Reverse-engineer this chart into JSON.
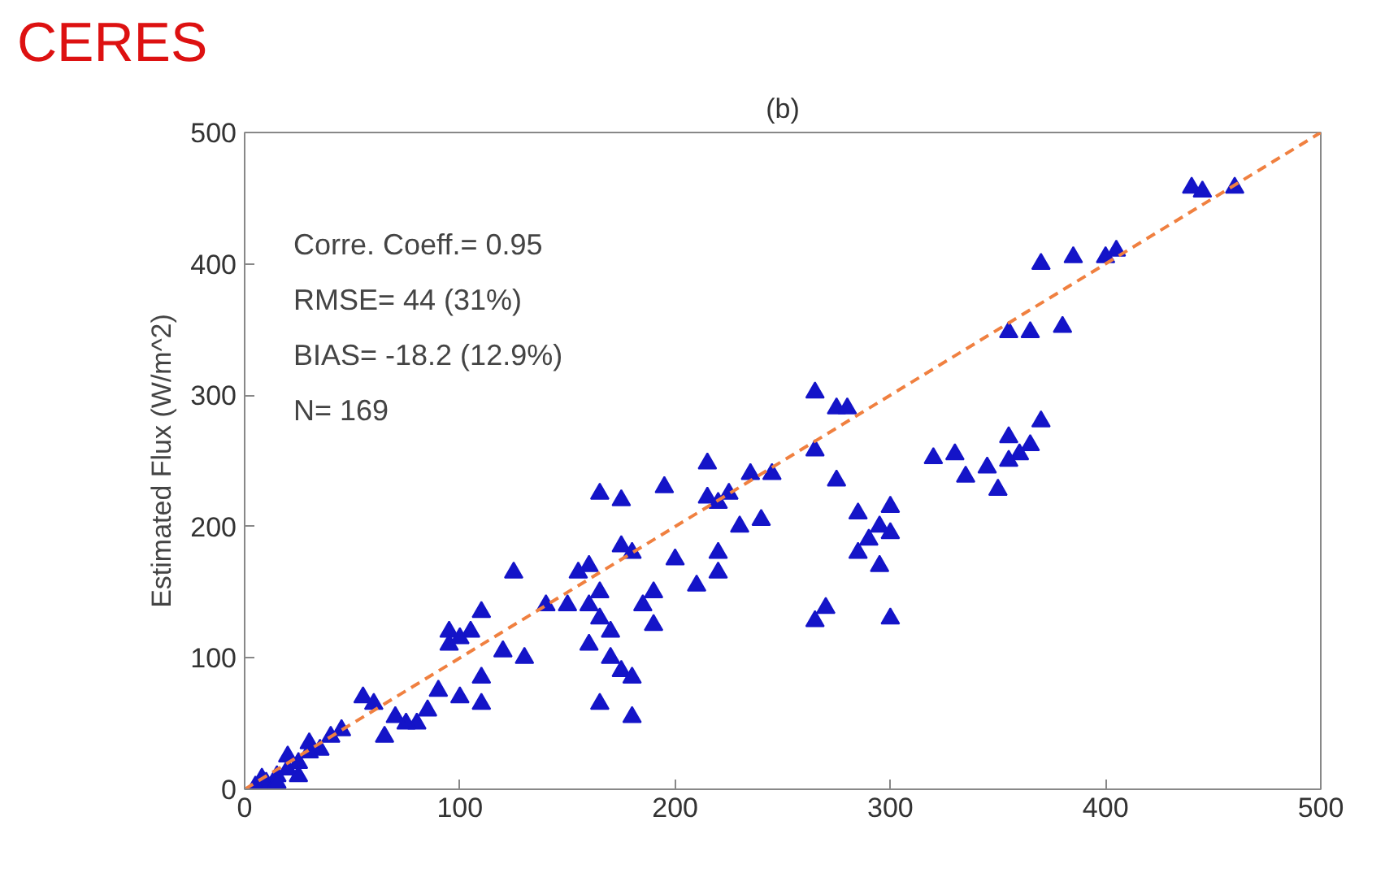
{
  "chart_data": {
    "type": "scatter",
    "title": "CERES",
    "subtitle": "(b)",
    "ylabel": "Estimated Flux (W/m^2)",
    "xlim": [
      0,
      500
    ],
    "ylim": [
      0,
      500
    ],
    "xticks": [
      0,
      100,
      200,
      300,
      400,
      500
    ],
    "yticks": [
      0,
      100,
      200,
      300,
      400,
      500
    ],
    "grid": false,
    "annotations": [
      "Corre. Coeff.= 0.95",
      "RMSE= 44 (31%)",
      "BIAS= -18.2 (12.9%)",
      "N= 169"
    ],
    "series": [
      {
        "color": "#1414c8",
        "marker": "triangle",
        "x": [
          440,
          445,
          460,
          370,
          385,
          400,
          405,
          355,
          365,
          380,
          370,
          365,
          360,
          355,
          350,
          345,
          330,
          320,
          335,
          355,
          300,
          295,
          300,
          290,
          285,
          295,
          300,
          285,
          265,
          275,
          280,
          265,
          275,
          265,
          270,
          245,
          235,
          225,
          220,
          215,
          215,
          240,
          230,
          220,
          220,
          210,
          200,
          195,
          190,
          185,
          190,
          180,
          175,
          175,
          165,
          160,
          155,
          165,
          160,
          165,
          170,
          170,
          175,
          180,
          180,
          165,
          160,
          150,
          140,
          130,
          120,
          125,
          110,
          105,
          95,
          95,
          100,
          110,
          110,
          100,
          90,
          85,
          80,
          75,
          70,
          65,
          55,
          60,
          45,
          40,
          35,
          30,
          25,
          20,
          15,
          10,
          5,
          20,
          25,
          15,
          30,
          8
        ],
        "values": [
          458,
          455,
          458,
          400,
          405,
          405,
          410,
          348,
          348,
          352,
          280,
          262,
          255,
          250,
          228,
          245,
          255,
          252,
          238,
          268,
          215,
          200,
          195,
          190,
          180,
          170,
          130,
          210,
          302,
          290,
          290,
          258,
          235,
          128,
          138,
          240,
          240,
          225,
          218,
          222,
          248,
          205,
          200,
          180,
          165,
          155,
          175,
          230,
          150,
          140,
          125,
          180,
          185,
          220,
          225,
          170,
          165,
          150,
          140,
          130,
          120,
          100,
          90,
          85,
          55,
          65,
          110,
          140,
          140,
          100,
          105,
          165,
          135,
          120,
          120,
          110,
          115,
          85,
          65,
          70,
          75,
          60,
          50,
          50,
          55,
          40,
          70,
          65,
          45,
          40,
          30,
          28,
          20,
          15,
          10,
          5,
          2,
          25,
          10,
          5,
          35,
          8
        ]
      },
      {
        "type": "line",
        "color": "#f08040",
        "line_style": "dashed",
        "marker": "none",
        "x": [
          0,
          500
        ],
        "values": [
          0,
          500
        ]
      }
    ]
  }
}
